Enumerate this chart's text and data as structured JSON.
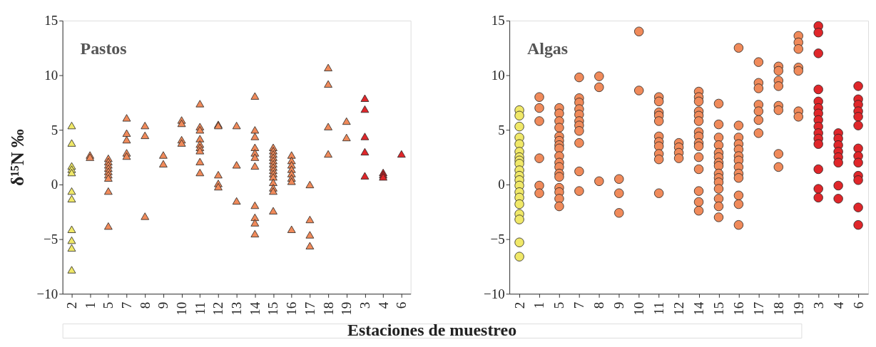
{
  "chart_data": [
    {
      "type": "scatter",
      "ylabel": "δ¹⁵N ‰",
      "xlabel": "Estaciones de muestreo",
      "annotations": [
        "Pastos"
      ],
      "marker": "triangle",
      "categories": [
        "2",
        "1",
        "5",
        "7",
        "8",
        "9",
        "10",
        "11",
        "12",
        "13",
        "14",
        "15",
        "16",
        "17",
        "18",
        "19",
        "3",
        "4",
        "6"
      ],
      "ylim": [
        -10,
        15
      ],
      "yticks": [
        -10,
        -5,
        0,
        5,
        10,
        15
      ],
      "series": [
        {
          "color": "#f0e868",
          "x": [
            "2",
            "2",
            "2",
            "2",
            "2",
            "2",
            "2",
            "2",
            "2",
            "2",
            "2"
          ],
          "values": [
            5.4,
            3.8,
            1.7,
            1.4,
            1.1,
            -0.6,
            -1.3,
            -4.1,
            -5.1,
            -5.8,
            -7.8
          ]
        },
        {
          "color": "#f08a5a",
          "x": [
            "1",
            "1",
            "5",
            "5",
            "5",
            "5",
            "5",
            "5",
            "5",
            "5",
            "5",
            "7",
            "7",
            "7",
            "7",
            "7",
            "8",
            "8",
            "8",
            "9",
            "9",
            "10",
            "10",
            "10",
            "10",
            "11",
            "11",
            "11",
            "11",
            "11",
            "11",
            "11",
            "11",
            "11",
            "12",
            "12",
            "12",
            "12",
            "12",
            "13",
            "13",
            "13",
            "14",
            "14",
            "14",
            "14",
            "14",
            "14",
            "14",
            "14",
            "14",
            "14",
            "14",
            "15",
            "15",
            "15",
            "15",
            "15",
            "15",
            "15",
            "15",
            "15",
            "15",
            "15",
            "15",
            "15",
            "15",
            "16",
            "16",
            "16",
            "16",
            "16",
            "16",
            "16",
            "16",
            "17",
            "17",
            "17",
            "17",
            "18",
            "18",
            "18",
            "18",
            "19",
            "19"
          ],
          "values": [
            2.7,
            2.5,
            2.4,
            2.1,
            1.8,
            1.5,
            1.2,
            0.9,
            0.6,
            -0.6,
            -3.8,
            6.1,
            4.7,
            4.1,
            2.9,
            2.6,
            5.4,
            4.5,
            -2.9,
            2.7,
            1.9,
            5.9,
            5.6,
            4.1,
            3.8,
            7.4,
            5.3,
            5.0,
            4.2,
            3.7,
            3.4,
            3.1,
            2.1,
            1.1,
            5.5,
            5.4,
            0.9,
            0.1,
            -0.2,
            5.4,
            1.8,
            -1.5,
            8.1,
            5.0,
            4.4,
            3.4,
            2.9,
            2.5,
            1.7,
            -1.9,
            -3.0,
            -3.5,
            -4.5,
            3.4,
            3.1,
            2.8,
            2.5,
            2.2,
            1.9,
            1.6,
            1.3,
            1.0,
            0.7,
            0.2,
            -0.3,
            -0.6,
            -2.4,
            2.7,
            2.2,
            1.8,
            1.4,
            1.0,
            0.6,
            0.3,
            -4.1,
            0.0,
            -3.2,
            -4.6,
            -5.6,
            10.7,
            9.2,
            5.3,
            2.8,
            5.8,
            4.3
          ]
        },
        {
          "color": "#e0262a",
          "x": [
            "3",
            "3",
            "3",
            "3",
            "3",
            "4",
            "4",
            "4",
            "6"
          ],
          "values": [
            7.9,
            6.9,
            4.4,
            3.0,
            0.8,
            1.1,
            0.9,
            0.7,
            2.8
          ]
        }
      ]
    },
    {
      "type": "scatter",
      "annotations": [
        "Algas"
      ],
      "marker": "circle",
      "categories": [
        "2",
        "1",
        "5",
        "7",
        "8",
        "9",
        "10",
        "11",
        "12",
        "14",
        "15",
        "16",
        "17",
        "18",
        "19",
        "3",
        "4",
        "6"
      ],
      "ylim": [
        -10,
        15
      ],
      "yticks": [
        -10,
        -5,
        0,
        5,
        10,
        15
      ],
      "series": [
        {
          "color": "#f5e663",
          "x": [
            "2",
            "2",
            "2",
            "2",
            "2",
            "2",
            "2",
            "2",
            "2",
            "2",
            "2",
            "2",
            "2",
            "2",
            "2",
            "2",
            "2",
            "2",
            "2",
            "2"
          ],
          "values": [
            6.8,
            6.3,
            5.3,
            4.3,
            3.7,
            3.0,
            2.5,
            2.2,
            1.9,
            1.3,
            0.8,
            0.4,
            -0.1,
            -0.7,
            -1.2,
            -1.8,
            -2.7,
            -3.2,
            -5.3,
            -6.6
          ]
        },
        {
          "color": "#f0885a",
          "x": [
            "1",
            "1",
            "1",
            "1",
            "1",
            "1",
            "5",
            "5",
            "5",
            "5",
            "5",
            "5",
            "5",
            "5",
            "5",
            "5",
            "5",
            "5",
            "5",
            "5",
            "5",
            "5",
            "5",
            "7",
            "7",
            "7",
            "7",
            "7",
            "7",
            "7",
            "7",
            "7",
            "7",
            "7",
            "8",
            "8",
            "8",
            "9",
            "9",
            "9",
            "10",
            "10",
            "11",
            "11",
            "11",
            "11",
            "11",
            "11",
            "11",
            "11",
            "11",
            "11",
            "11",
            "12",
            "12",
            "12",
            "12",
            "14",
            "14",
            "14",
            "14",
            "14",
            "14",
            "14",
            "14",
            "14",
            "14",
            "14",
            "14",
            "14",
            "14",
            "14",
            "15",
            "15",
            "15",
            "15",
            "15",
            "15",
            "15",
            "15",
            "15",
            "15",
            "15",
            "15",
            "15",
            "15",
            "15",
            "16",
            "16",
            "16",
            "16",
            "16",
            "16",
            "16",
            "16",
            "16",
            "16",
            "16",
            "16",
            "16",
            "17",
            "17",
            "17",
            "17",
            "17",
            "17",
            "17",
            "18",
            "18",
            "18",
            "18",
            "18",
            "18",
            "18",
            "18",
            "19",
            "19",
            "19",
            "19",
            "19",
            "19",
            "19"
          ],
          "values": [
            8.0,
            7.0,
            5.8,
            2.4,
            -0.1,
            -0.8,
            7.0,
            6.5,
            5.8,
            5.2,
            4.4,
            4.0,
            3.6,
            3.3,
            2.6,
            2.0,
            1.6,
            1.0,
            0.7,
            -0.3,
            -0.7,
            -1.3,
            -2.0,
            9.8,
            7.9,
            7.5,
            6.9,
            6.4,
            5.8,
            5.4,
            4.9,
            3.8,
            1.2,
            -0.6,
            9.9,
            8.9,
            0.3,
            0.5,
            -0.8,
            -2.6,
            14.0,
            8.6,
            8.0,
            7.6,
            6.6,
            6.3,
            5.8,
            4.4,
            3.9,
            3.5,
            2.8,
            2.3,
            -0.8,
            3.8,
            3.4,
            2.9,
            2.4,
            8.5,
            8.0,
            7.6,
            6.7,
            6.3,
            5.8,
            4.8,
            4.4,
            3.8,
            3.5,
            2.5,
            1.4,
            -0.6,
            -1.6,
            -2.4,
            7.4,
            5.5,
            4.3,
            3.6,
            2.9,
            2.5,
            2.0,
            1.7,
            1.0,
            0.6,
            0.2,
            -0.4,
            -1.3,
            -2.0,
            -3.0,
            12.5,
            5.4,
            4.3,
            3.7,
            3.2,
            2.6,
            2.2,
            1.6,
            1.0,
            0.6,
            -1.0,
            -1.8,
            -3.7,
            11.2,
            9.3,
            8.8,
            7.3,
            6.7,
            5.9,
            4.7,
            10.8,
            10.4,
            9.5,
            9.0,
            7.2,
            6.8,
            2.8,
            1.6,
            13.6,
            13.0,
            12.4,
            10.7,
            10.4,
            6.7,
            6.2
          ]
        },
        {
          "color": "#dc2028",
          "x": [
            "3",
            "3",
            "3",
            "3",
            "3",
            "3",
            "3",
            "3",
            "3",
            "3",
            "3",
            "3",
            "3",
            "3",
            "3",
            "4",
            "4",
            "4",
            "4",
            "4",
            "4",
            "4",
            "4",
            "6",
            "6",
            "6",
            "6",
            "6",
            "6",
            "6",
            "6",
            "6",
            "6",
            "6",
            "6",
            "6"
          ],
          "values": [
            14.5,
            13.9,
            12.0,
            8.7,
            7.6,
            7.0,
            6.5,
            5.9,
            5.3,
            4.7,
            4.2,
            3.7,
            1.4,
            -0.4,
            -1.2,
            4.7,
            4.2,
            3.6,
            3.0,
            2.5,
            2.0,
            -0.1,
            -1.3,
            9.0,
            7.8,
            7.3,
            6.7,
            6.2,
            5.4,
            3.3,
            2.6,
            2.0,
            0.8,
            0.4,
            -2.1,
            -3.7
          ]
        }
      ]
    }
  ]
}
